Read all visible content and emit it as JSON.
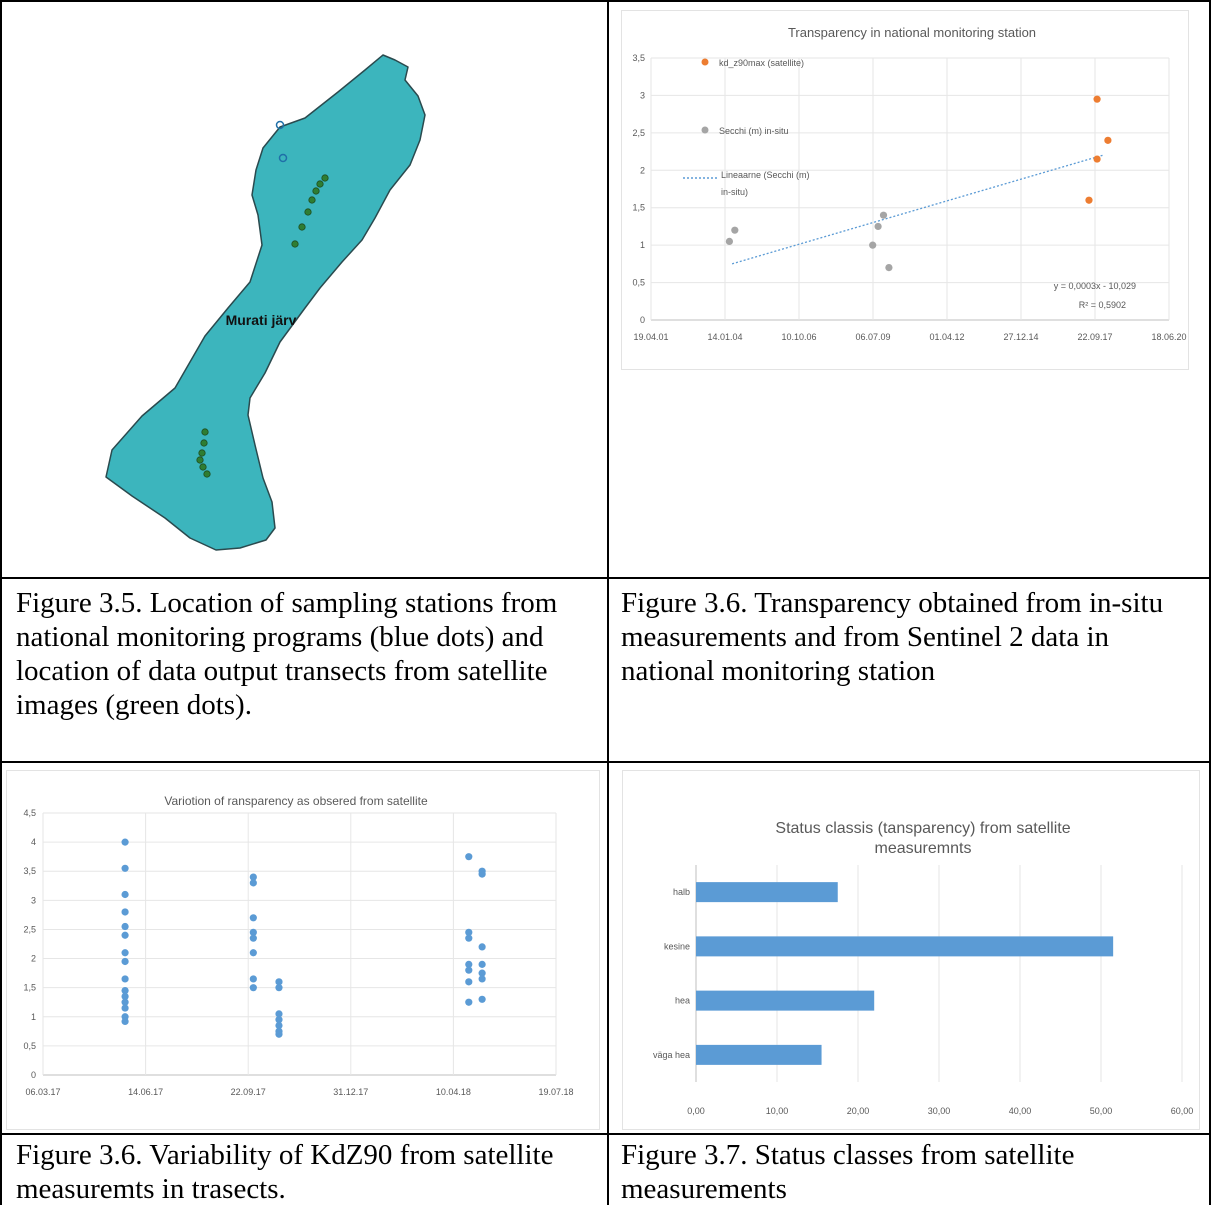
{
  "figure_map": {
    "lake_label": "Murati järv",
    "colors": {
      "lake": "#3cb5bd",
      "outline": "#2a4a4e",
      "station": "#1f6fa8",
      "transect": "#2e7d32"
    },
    "caption": "Figure 3.5. Location of sampling stations from national monitoring programs (blue dots) and location of data output transects from satellite images (green dots)."
  },
  "captions": {
    "fig36a": "Figure 3.6. Transparency obtained from in-situ measurements and from Sentinel 2 data in national monitoring station",
    "fig36b": "Figure 3.6. Variability of KdZ90 from satellite measuremts in trasects.",
    "fig37": "Figure 3.7. Status classes from satellite measurements"
  },
  "chart_data": [
    {
      "type": "scatter",
      "title": "Transparency in national monitoring station",
      "x_ticks": [
        "19.04.01",
        "14.01.04",
        "10.10.06",
        "06.07.09",
        "01.04.12",
        "27.12.14",
        "22.09.17",
        "18.06.20"
      ],
      "y_ticks": [
        "0",
        "0,5",
        "1",
        "1,5",
        "2",
        "2,5",
        "3",
        "3,5"
      ],
      "ylim": [
        0,
        3.5
      ],
      "series": [
        {
          "name": "kd_z90max (satellite)",
          "color": "#ed7d31",
          "points": [
            [
              2017.5,
              1.6
            ],
            [
              2017.8,
              2.95
            ],
            [
              2017.8,
              2.15
            ],
            [
              2018.2,
              2.4
            ]
          ]
        },
        {
          "name": "Secchi (m) in-situ",
          "color": "#a5a5a5",
          "points": [
            [
              2004.2,
              1.05
            ],
            [
              2004.4,
              1.2
            ],
            [
              2009.5,
              1.0
            ],
            [
              2009.7,
              1.25
            ],
            [
              2009.9,
              1.4
            ],
            [
              2010.1,
              0.7
            ]
          ]
        }
      ],
      "trendline": {
        "name": "Lineaarne (Secchi (m) in-situ)",
        "color": "#5b9bd5",
        "from": [
          2004.3,
          0.75
        ],
        "to": [
          2018.0,
          2.2
        ]
      },
      "equation": "y = 0,0003x - 10,029",
      "r2": "R² = 0,5902",
      "grid": true,
      "legend": "left"
    },
    {
      "type": "scatter",
      "title": "Variotion of ransparency as obsered from satellite",
      "x_ticks": [
        "06.03.17",
        "14.06.17",
        "22.09.17",
        "31.12.17",
        "10.04.18",
        "19.07.18"
      ],
      "y_ticks": [
        "0",
        "0,5",
        "1",
        "1,5",
        "2",
        "2,5",
        "3",
        "3,5",
        "4",
        "4,5"
      ],
      "ylim": [
        0,
        4.5
      ],
      "color": "#5b9bd5",
      "groups": [
        {
          "x": 0.8,
          "values": [
            4.0,
            3.55,
            3.1,
            2.8,
            2.55,
            2.4,
            2.1,
            1.95,
            1.65,
            1.45,
            1.35,
            1.25,
            1.15,
            1.0,
            0.92
          ]
        },
        {
          "x": 2.05,
          "values": [
            3.4,
            3.3,
            2.7,
            2.45,
            2.35,
            2.1,
            1.65,
            1.5
          ]
        },
        {
          "x": 2.3,
          "values": [
            1.6,
            1.5,
            1.05,
            0.95,
            0.85,
            0.75,
            0.7
          ]
        },
        {
          "x": 4.15,
          "values": [
            3.75,
            2.45,
            2.35,
            1.9,
            1.8,
            1.6,
            1.25
          ]
        },
        {
          "x": 4.28,
          "values": [
            3.5,
            3.45,
            2.2,
            1.9,
            1.75,
            1.65,
            1.3
          ]
        }
      ],
      "grid": true
    },
    {
      "type": "bar",
      "orientation": "horizontal",
      "title_line1": "Status classis (tansparency) from satellite",
      "title_line2": "measuremnts",
      "categories": [
        "halb",
        "kesine",
        "hea",
        "väga hea"
      ],
      "values": [
        17.5,
        51.5,
        22.0,
        15.5
      ],
      "x_ticks": [
        "0,00",
        "10,00",
        "20,00",
        "30,00",
        "40,00",
        "50,00",
        "60,00"
      ],
      "xlim": [
        0,
        60
      ],
      "color": "#5b9bd5",
      "grid": true
    }
  ]
}
